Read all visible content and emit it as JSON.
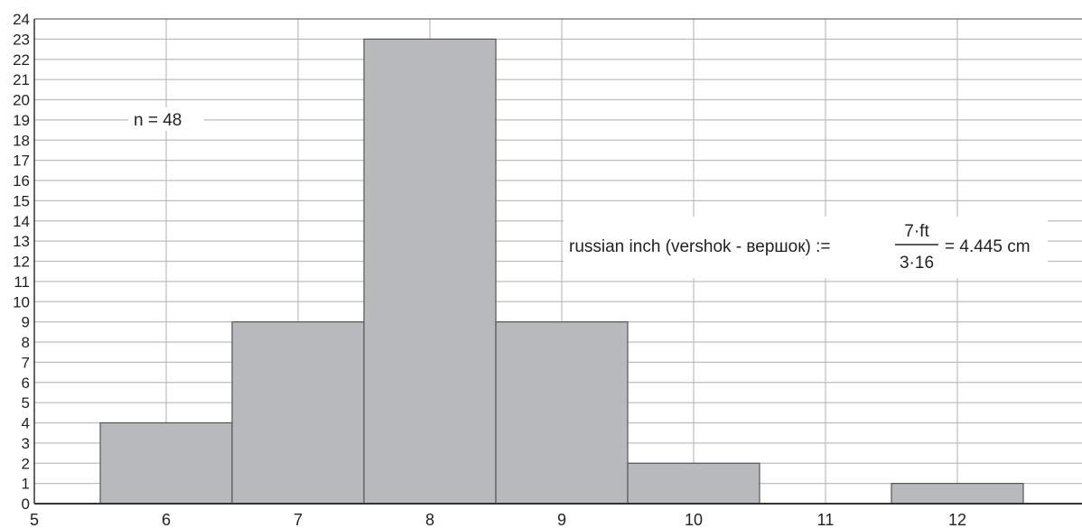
{
  "chart_data": {
    "type": "bar",
    "categories": [
      "6",
      "7",
      "8",
      "9",
      "10",
      "11",
      "12"
    ],
    "x": [
      6,
      7,
      8,
      9,
      10,
      11,
      12
    ],
    "values": [
      4,
      9,
      23,
      9,
      2,
      0,
      1
    ],
    "bin_width": 1,
    "xlim": [
      5,
      13
    ],
    "ylim": [
      0,
      24
    ],
    "x_ticks": [
      5,
      6,
      7,
      8,
      9,
      10,
      11,
      12
    ],
    "y_ticks": [
      0,
      1,
      2,
      3,
      4,
      5,
      6,
      7,
      8,
      9,
      10,
      11,
      12,
      13,
      14,
      15,
      16,
      17,
      18,
      19,
      20,
      21,
      22,
      23,
      24
    ],
    "grid": true,
    "title": "",
    "xlabel": "",
    "ylabel": "",
    "bar_color": "#b8b9bd",
    "bar_edge_color": "#555555",
    "grid_color": "#bdbdbd",
    "annotations": {
      "sample_size": "n = 48",
      "formula_lhs": "russian inch (vershok - вершок) :=",
      "formula_numerator": "7·ft",
      "formula_denominator": "3·16",
      "formula_rhs": "= 4.445 cm"
    }
  }
}
